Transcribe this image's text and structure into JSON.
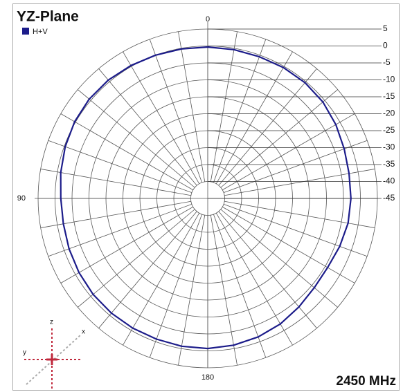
{
  "chart_data": {
    "type": "polar",
    "title": "YZ-Plane",
    "annotation": "2450 MHz",
    "axis_icon_labels": [
      "z",
      "x",
      "y"
    ],
    "rlim": [
      -45,
      5
    ],
    "rticks": [
      5,
      0,
      -5,
      -10,
      -15,
      -20,
      -25,
      -30,
      -35,
      -40,
      -45
    ],
    "thetaticks": [
      0,
      90,
      180
    ],
    "theta_grid_step": 10,
    "theta_zero": "top",
    "theta_direction": "counterclockwise",
    "legend": "upper left",
    "theta": [
      0,
      10,
      20,
      30,
      40,
      50,
      60,
      70,
      80,
      90,
      100,
      110,
      120,
      130,
      140,
      150,
      160,
      170,
      180,
      190,
      200,
      210,
      220,
      230,
      240,
      250,
      260,
      270,
      280,
      290,
      300,
      310,
      320,
      330,
      340,
      350
    ],
    "series": [
      {
        "name": "H+V",
        "color": "#1c1c8a",
        "values": [
          -0.3,
          -0.2,
          0,
          0.3,
          0.6,
          0.6,
          0.3,
          -0.3,
          -1.0,
          -1.7,
          -1.8,
          -1.5,
          -1.2,
          -0.9,
          -0.8,
          -0.8,
          -0.8,
          -0.7,
          -0.7,
          -1.0,
          -1.5,
          -2.2,
          -3.2,
          -4.0,
          -4.2,
          -3.6,
          -3.0,
          -2.8,
          -2.7,
          -2.2,
          -1.4,
          -0.7,
          -0.4,
          -0.4,
          -0.5,
          -0.4
        ]
      }
    ]
  }
}
